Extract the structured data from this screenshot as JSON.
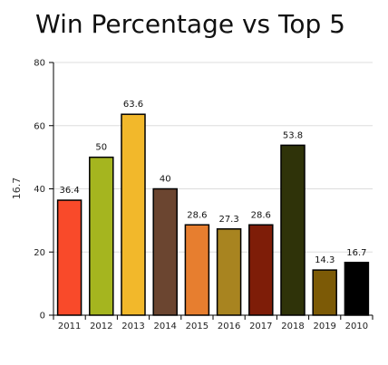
{
  "chart_data": {
    "type": "bar",
    "title": "Win Percentage vs Top 5",
    "ylabel": "16.7",
    "xlabel": "",
    "ylim": [
      0,
      80
    ],
    "yticks": [
      0,
      20,
      40,
      60,
      80
    ],
    "grid": true,
    "categories": [
      "2011",
      "2012",
      "2013",
      "2014",
      "2015",
      "2016",
      "2017",
      "2018",
      "2019",
      "2010"
    ],
    "values": [
      36.4,
      50,
      63.6,
      40,
      28.6,
      27.3,
      28.6,
      53.8,
      14.3,
      16.7
    ],
    "value_labels": [
      "36.4",
      "50",
      "63.6",
      "40",
      "28.6",
      "27.3",
      "28.6",
      "53.8",
      "14.3",
      "16.7"
    ],
    "colors": [
      "#f94a2a",
      "#a5b51f",
      "#f2b82b",
      "#6b4530",
      "#e77e2f",
      "#a88420",
      "#7e1d08",
      "#2f3309",
      "#7c5a06",
      "#000000"
    ]
  }
}
